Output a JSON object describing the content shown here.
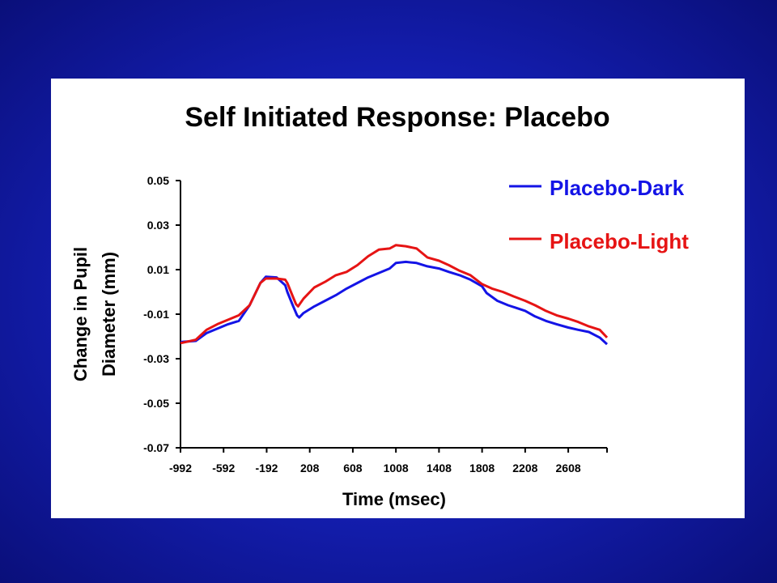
{
  "chart_data": {
    "type": "line",
    "title": "Self Initiated Response: Placebo",
    "xlabel": "Time (msec)",
    "ylabel_lines": [
      "Change in Pupil",
      "Diameter (mm)"
    ],
    "xlim": [
      -992,
      2968
    ],
    "ylim": [
      -0.07,
      0.05
    ],
    "x_ticks": [
      -992,
      -592,
      -192,
      208,
      608,
      1008,
      1408,
      1808,
      2208,
      2608
    ],
    "x_tick_labels": [
      "-992",
      "-592",
      "-192",
      "208",
      "608",
      "1008",
      "1408",
      "1808",
      "2208",
      "2608"
    ],
    "y_ticks": [
      0.05,
      0.03,
      0.01,
      -0.01,
      -0.03,
      -0.05,
      -0.07
    ],
    "y_tick_labels": [
      "0.05",
      "0.03",
      "0.01",
      "-0.01",
      "-0.03",
      "-0.05",
      "-0.07"
    ],
    "legend_position": "top-right",
    "series": [
      {
        "name": "Placebo-Dark",
        "color": "#1414e6",
        "points": [
          [
            -992,
            -0.0225
          ],
          [
            -850,
            -0.022
          ],
          [
            -750,
            -0.0185
          ],
          [
            -650,
            -0.0165
          ],
          [
            -550,
            -0.0145
          ],
          [
            -450,
            -0.013
          ],
          [
            -350,
            -0.006
          ],
          [
            -250,
            0.004
          ],
          [
            -200,
            0.0068
          ],
          [
            -100,
            0.0065
          ],
          [
            -20,
            0.003
          ],
          [
            0,
            0.0
          ],
          [
            50,
            -0.006
          ],
          [
            90,
            -0.0105
          ],
          [
            110,
            -0.0115
          ],
          [
            150,
            -0.0095
          ],
          [
            250,
            -0.0065
          ],
          [
            350,
            -0.004
          ],
          [
            450,
            -0.0015
          ],
          [
            550,
            0.0015
          ],
          [
            650,
            0.004
          ],
          [
            750,
            0.0065
          ],
          [
            850,
            0.0085
          ],
          [
            950,
            0.0105
          ],
          [
            1008,
            0.013
          ],
          [
            1100,
            0.0135
          ],
          [
            1200,
            0.013
          ],
          [
            1300,
            0.0115
          ],
          [
            1408,
            0.0105
          ],
          [
            1500,
            0.009
          ],
          [
            1600,
            0.0075
          ],
          [
            1700,
            0.0055
          ],
          [
            1808,
            0.0025
          ],
          [
            1850,
            -0.0005
          ],
          [
            1950,
            -0.004
          ],
          [
            2050,
            -0.006
          ],
          [
            2208,
            -0.0085
          ],
          [
            2300,
            -0.011
          ],
          [
            2400,
            -0.013
          ],
          [
            2500,
            -0.0145
          ],
          [
            2608,
            -0.016
          ],
          [
            2700,
            -0.017
          ],
          [
            2800,
            -0.018
          ],
          [
            2900,
            -0.0205
          ],
          [
            2968,
            -0.0235
          ]
        ]
      },
      {
        "name": "Placebo-Light",
        "color": "#e61414",
        "points": [
          [
            -992,
            -0.023
          ],
          [
            -850,
            -0.0215
          ],
          [
            -750,
            -0.017
          ],
          [
            -650,
            -0.0145
          ],
          [
            -550,
            -0.0125
          ],
          [
            -450,
            -0.0105
          ],
          [
            -350,
            -0.006
          ],
          [
            -250,
            0.004
          ],
          [
            -200,
            0.006
          ],
          [
            -100,
            0.006
          ],
          [
            -20,
            0.0055
          ],
          [
            0,
            0.004
          ],
          [
            50,
            -0.002
          ],
          [
            80,
            -0.0055
          ],
          [
            100,
            -0.0065
          ],
          [
            150,
            -0.003
          ],
          [
            250,
            0.002
          ],
          [
            350,
            0.0045
          ],
          [
            450,
            0.0075
          ],
          [
            550,
            0.009
          ],
          [
            650,
            0.012
          ],
          [
            750,
            0.016
          ],
          [
            850,
            0.019
          ],
          [
            950,
            0.0195
          ],
          [
            1008,
            0.021
          ],
          [
            1100,
            0.0205
          ],
          [
            1200,
            0.0195
          ],
          [
            1300,
            0.0155
          ],
          [
            1408,
            0.014
          ],
          [
            1500,
            0.012
          ],
          [
            1600,
            0.0095
          ],
          [
            1700,
            0.0075
          ],
          [
            1808,
            0.0035
          ],
          [
            1900,
            0.0015
          ],
          [
            2000,
            0.0
          ],
          [
            2100,
            -0.002
          ],
          [
            2208,
            -0.004
          ],
          [
            2300,
            -0.006
          ],
          [
            2400,
            -0.0085
          ],
          [
            2500,
            -0.0105
          ],
          [
            2608,
            -0.012
          ],
          [
            2700,
            -0.0135
          ],
          [
            2800,
            -0.0155
          ],
          [
            2900,
            -0.017
          ],
          [
            2968,
            -0.0205
          ]
        ]
      }
    ]
  }
}
